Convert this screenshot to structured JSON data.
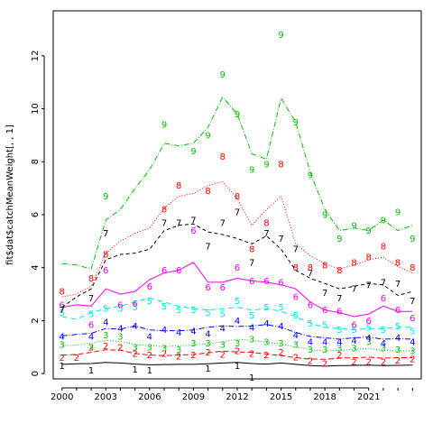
{
  "chart_data": {
    "type": "line",
    "title": "",
    "xlabel": "",
    "ylabel": "fit$dat$catchMeanWeight[, , 1]",
    "xlim": [
      1999.4,
      2024.6
    ],
    "ylim": [
      -0.2,
      13.7
    ],
    "x_ticks": [
      2000,
      2003,
      2006,
      2009,
      2012,
      2015,
      2018,
      2021
    ],
    "y_ticks": [
      0,
      2,
      4,
      6,
      8,
      10,
      12
    ],
    "grid": false,
    "legend": "none",
    "x": [
      2000,
      2001,
      2002,
      2003,
      2004,
      2005,
      2006,
      2007,
      2008,
      2009,
      2010,
      2011,
      2012,
      2013,
      2014,
      2015,
      2016,
      2017,
      2018,
      2019,
      2020,
      2021,
      2022,
      2023,
      2024
    ],
    "series": [
      {
        "label": "1",
        "color": "#000000",
        "dash": "",
        "fitted": [
          0.35,
          0.37,
          0.38,
          0.42,
          0.4,
          0.36,
          0.33,
          0.34,
          0.35,
          0.35,
          0.37,
          0.4,
          0.42,
          0.38,
          0.36,
          0.4,
          0.35,
          0.3,
          0.28,
          0.3,
          0.31,
          0.32,
          0.3,
          0.31,
          0.32
        ],
        "observed": [
          0.3,
          null,
          0.12,
          null,
          null,
          0.15,
          0.12,
          null,
          null,
          null,
          0.2,
          null,
          0.3,
          -0.15,
          null,
          null,
          null,
          null,
          null,
          null,
          null,
          null,
          null,
          null,
          null
        ]
      },
      {
        "label": "2",
        "color": "#ff0000",
        "dash": "6,3",
        "fitted": [
          0.7,
          0.72,
          0.8,
          0.9,
          0.88,
          0.76,
          0.7,
          0.68,
          0.7,
          0.72,
          0.78,
          0.85,
          0.82,
          0.8,
          0.74,
          0.68,
          0.6,
          0.55,
          0.54,
          0.58,
          0.6,
          0.62,
          0.58,
          0.6,
          0.6
        ],
        "observed": [
          0.6,
          0.6,
          1.0,
          1.05,
          1.0,
          0.75,
          0.7,
          0.75,
          0.65,
          0.7,
          0.8,
          0.72,
          0.85,
          0.75,
          0.7,
          0.8,
          0.62,
          0.48,
          0.38,
          0.7,
          0.45,
          0.45,
          0.45,
          0.5,
          0.55
        ]
      },
      {
        "label": "3",
        "color": "#00c000",
        "dash": "1,2",
        "fitted": [
          1.05,
          1.08,
          1.15,
          1.25,
          1.22,
          1.1,
          1.05,
          1.02,
          1.05,
          1.08,
          1.12,
          1.2,
          1.3,
          1.25,
          1.18,
          1.12,
          1.0,
          0.9,
          0.85,
          0.88,
          0.92,
          0.95,
          0.88,
          0.86,
          0.85
        ],
        "observed": [
          1.1,
          null,
          1.0,
          1.45,
          1.4,
          1.0,
          1.0,
          0.95,
          0.9,
          1.15,
          1.15,
          1.1,
          1.15,
          1.3,
          1.2,
          1.15,
          1.1,
          0.9,
          0.9,
          0.95,
          0.95,
          1.2,
          0.95,
          0.9,
          0.85
        ]
      },
      {
        "label": "4",
        "color": "#0000ff",
        "dash": "6,2,1,2",
        "fitted": [
          1.42,
          1.48,
          1.52,
          1.7,
          1.68,
          1.8,
          1.65,
          1.62,
          1.62,
          1.65,
          1.75,
          1.8,
          1.78,
          1.8,
          1.85,
          1.75,
          1.55,
          1.4,
          1.35,
          1.3,
          1.35,
          1.38,
          1.3,
          1.32,
          1.3
        ],
        "observed": [
          1.4,
          null,
          1.4,
          1.95,
          1.7,
          1.8,
          1.4,
          1.65,
          1.55,
          1.6,
          1.5,
          1.7,
          2.0,
          1.75,
          1.9,
          1.8,
          1.45,
          1.2,
          1.2,
          1.2,
          1.25,
          1.35,
          1.15,
          1.35,
          1.2
        ]
      },
      {
        "label": "5",
        "color": "#00e5ee",
        "dash": "6,4",
        "fitted": [
          2.15,
          2.05,
          2.3,
          2.45,
          2.55,
          2.7,
          2.85,
          2.7,
          2.55,
          2.45,
          2.4,
          2.45,
          2.5,
          2.4,
          2.45,
          2.35,
          2.15,
          1.9,
          1.75,
          1.7,
          1.65,
          1.7,
          1.7,
          1.75,
          1.75
        ],
        "observed": [
          2.3,
          null,
          2.25,
          2.45,
          2.45,
          2.5,
          2.75,
          2.55,
          2.4,
          2.4,
          2.3,
          2.25,
          2.75,
          2.2,
          2.5,
          2.5,
          2.2,
          1.9,
          1.85,
          1.65,
          1.65,
          1.75,
          1.65,
          1.8,
          1.6
        ]
      },
      {
        "label": "6",
        "color": "#ee00ee",
        "dash": "",
        "fitted": [
          2.5,
          2.6,
          2.55,
          3.2,
          3.0,
          3.1,
          3.55,
          3.8,
          3.9,
          4.2,
          3.45,
          3.45,
          3.6,
          3.5,
          3.45,
          3.35,
          3.2,
          2.7,
          2.4,
          2.3,
          2.15,
          2.25,
          2.55,
          2.35,
          2.35
        ],
        "observed": [
          2.6,
          null,
          1.85,
          3.9,
          2.6,
          2.65,
          3.3,
          3.9,
          3.9,
          5.4,
          3.25,
          3.25,
          4.0,
          3.5,
          3.5,
          3.45,
          2.9,
          2.6,
          2.4,
          2.35,
          1.85,
          2.0,
          2.85,
          2.4,
          2.1
        ]
      },
      {
        "label": "7",
        "color": "#000000",
        "dash": "4,3",
        "fitted": [
          2.5,
          2.9,
          3.2,
          4.3,
          4.5,
          4.55,
          4.7,
          5.4,
          5.6,
          5.65,
          5.35,
          5.25,
          5.1,
          4.9,
          5.2,
          4.7,
          3.9,
          3.6,
          3.4,
          3.2,
          3.3,
          3.4,
          3.35,
          2.95,
          3.1
        ],
        "observed": [
          2.4,
          null,
          2.85,
          5.3,
          null,
          null,
          null,
          5.7,
          5.7,
          5.8,
          4.8,
          5.7,
          6.1,
          4.2,
          5.3,
          5.1,
          4.7,
          3.8,
          3.05,
          2.85,
          3.2,
          3.35,
          3.45,
          3.4,
          2.75
        ]
      },
      {
        "label": "8",
        "color": "#ff0000",
        "dash": "1,2",
        "fitted": [
          2.9,
          3.0,
          3.3,
          4.55,
          5.0,
          5.3,
          5.5,
          6.25,
          6.7,
          6.8,
          7.1,
          7.25,
          6.6,
          5.6,
          6.2,
          6.7,
          4.9,
          4.45,
          4.15,
          3.95,
          4.1,
          4.3,
          4.4,
          4.05,
          3.8
        ],
        "observed": [
          3.1,
          null,
          3.6,
          4.5,
          null,
          null,
          null,
          6.2,
          7.1,
          null,
          6.9,
          8.2,
          6.7,
          4.7,
          5.7,
          7.9,
          4.0,
          4.0,
          4.1,
          3.9,
          4.2,
          4.4,
          4.8,
          4.2,
          4.0
        ]
      },
      {
        "label": "9",
        "color": "#00c000",
        "dash": "6,2,1,2",
        "fitted": [
          4.15,
          4.1,
          3.95,
          5.8,
          6.2,
          7.0,
          7.7,
          8.7,
          8.6,
          8.7,
          9.3,
          10.45,
          9.8,
          8.3,
          8.1,
          10.4,
          9.5,
          7.6,
          6.2,
          5.4,
          5.5,
          5.4,
          5.8,
          5.4,
          5.6
        ],
        "observed": [
          null,
          null,
          null,
          6.7,
          null,
          null,
          null,
          9.4,
          null,
          8.4,
          9.0,
          11.3,
          9.8,
          7.7,
          7.9,
          12.8,
          9.5,
          7.5,
          6.0,
          5.1,
          5.6,
          5.4,
          5.8,
          6.1,
          5.1
        ]
      }
    ]
  }
}
